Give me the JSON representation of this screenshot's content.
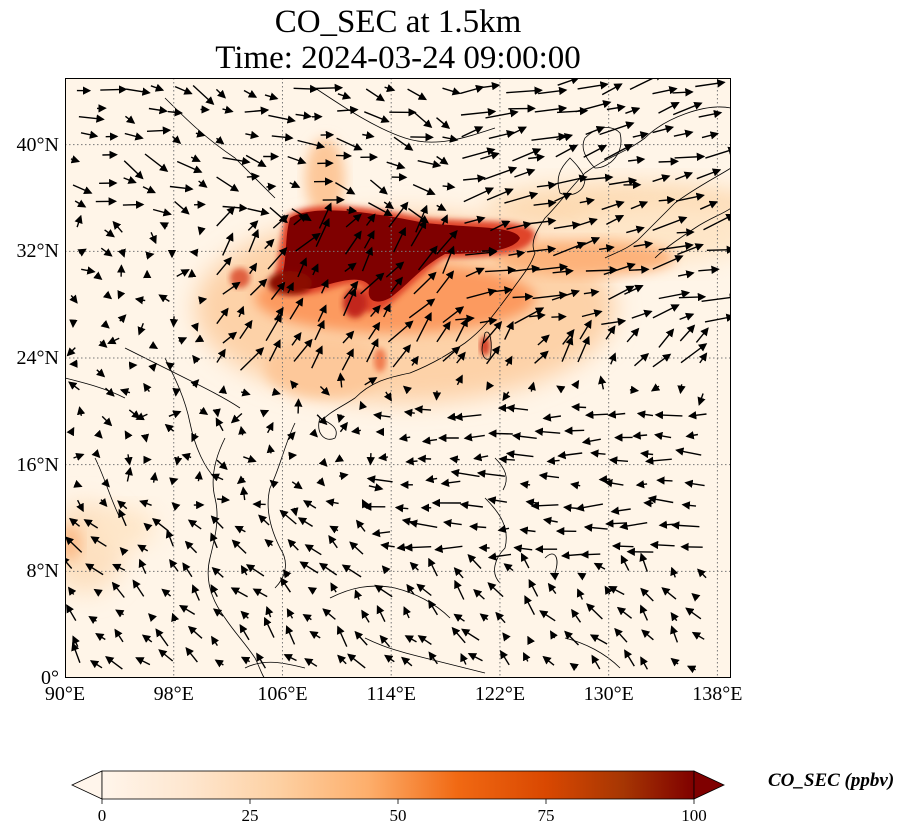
{
  "title": "CO_SEC at 1.5km",
  "subtitle": "Time: 2024-03-24 09:00:00",
  "map": {
    "lon_range": [
      90,
      139
    ],
    "lat_range": [
      0,
      45
    ],
    "lat_ticks": [
      {
        "value": 0,
        "label": "0°"
      },
      {
        "value": 8,
        "label": "8°N"
      },
      {
        "value": 16,
        "label": "16°N"
      },
      {
        "value": 24,
        "label": "24°N"
      },
      {
        "value": 32,
        "label": "32°N"
      },
      {
        "value": 40,
        "label": "40°N"
      }
    ],
    "lon_ticks": [
      {
        "value": 90,
        "label": "90°E"
      },
      {
        "value": 98,
        "label": "98°E"
      },
      {
        "value": 106,
        "label": "106°E"
      },
      {
        "value": 114,
        "label": "114°E"
      },
      {
        "value": 122,
        "label": "122°E"
      },
      {
        "value": 130,
        "label": "130°E"
      },
      {
        "value": 138,
        "label": "138°E"
      }
    ],
    "gridlines": true,
    "colors": {
      "background": "#fff5e8",
      "low": "#fee6c8",
      "mid": "#fdb27a",
      "high": "#e0452b",
      "max": "#7f0000",
      "coast": "#000000"
    }
  },
  "colorbar": {
    "label": "CO_SEC (ppbv)",
    "min": 0,
    "max": 100,
    "extend": "both",
    "ticks": [
      {
        "value": 0,
        "label": "0"
      },
      {
        "value": 25,
        "label": "25"
      },
      {
        "value": 50,
        "label": "50"
      },
      {
        "value": 75,
        "label": "75"
      },
      {
        "value": 100,
        "label": "100"
      }
    ]
  }
}
